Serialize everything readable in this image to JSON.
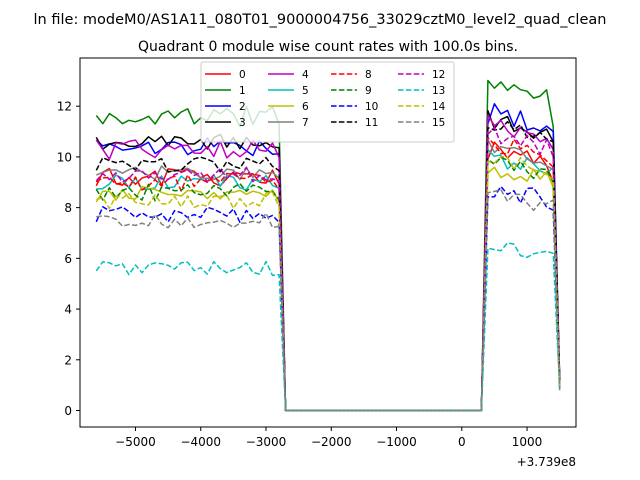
{
  "suptitle": "ln file: modeM0/AS1A11_080T01_9000004756_33029cztM0_level2_quad_clean",
  "chart_data": {
    "type": "line",
    "title": "Quadrant 0 module wise count rates with 100.0s bins.",
    "x_offset_label": "+3.739e8",
    "xlim": [
      -5850,
      1750
    ],
    "ylim": [
      -0.65,
      13.9
    ],
    "xticks": [
      -5000,
      -4000,
      -3000,
      -2000,
      -1000,
      0,
      1000
    ],
    "xtick_labels": [
      "−5000",
      "−4000",
      "−3000",
      "−2000",
      "−1000",
      "0",
      "1000"
    ],
    "yticks": [
      0,
      2,
      4,
      6,
      8,
      10,
      12
    ],
    "ytick_labels": [
      "0",
      "2",
      "4",
      "6",
      "8",
      "10",
      "12"
    ],
    "x_first_segment": [
      -5600,
      -2800
    ],
    "x_gap": [
      -2700,
      300
    ],
    "x_second_segment": [
      400,
      1500
    ],
    "step": 100,
    "legend_ncol": 4,
    "legend_location": "top-center",
    "series": [
      {
        "name": "0",
        "color": "#ff0000",
        "dash": false,
        "level1": 9.2,
        "amp1": 0.35,
        "level2": 10.3,
        "amp2": 0.4,
        "end_drop": 9.0,
        "last": 1.0
      },
      {
        "name": "1",
        "color": "#008000",
        "dash": false,
        "level1": 11.6,
        "amp1": 0.4,
        "level2": 12.9,
        "amp2": 0.3,
        "end_drop": 11.2,
        "last": 1.2
      },
      {
        "name": "2",
        "color": "#0000ff",
        "dash": false,
        "level1": 10.4,
        "amp1": 0.35,
        "level2": 11.8,
        "amp2": 0.5,
        "end_drop": 11.0,
        "last": 1.2
      },
      {
        "name": "3",
        "color": "#000000",
        "dash": false,
        "level1": 10.6,
        "amp1": 0.3,
        "level2": 11.5,
        "amp2": 0.4,
        "end_drop": 10.6,
        "last": 1.0
      },
      {
        "name": "4",
        "color": "#bf00bf",
        "dash": false,
        "level1": 10.3,
        "amp1": 0.4,
        "level2": 11.3,
        "amp2": 0.4,
        "end_drop": 10.3,
        "last": 1.0
      },
      {
        "name": "5",
        "color": "#00bfbf",
        "dash": false,
        "level1": 9.0,
        "amp1": 0.3,
        "level2": 10.0,
        "amp2": 0.35,
        "end_drop": 9.6,
        "last": 1.0
      },
      {
        "name": "6",
        "color": "#bfbf00",
        "dash": false,
        "level1": 8.5,
        "amp1": 0.35,
        "level2": 9.6,
        "amp2": 0.35,
        "end_drop": 8.8,
        "last": 0.9
      },
      {
        "name": "7",
        "color": "#808080",
        "dash": false,
        "level1": 9.4,
        "amp1": 0.3,
        "level2": 10.4,
        "amp2": 0.3,
        "end_drop": 9.5,
        "last": 1.0
      },
      {
        "name": "8",
        "color": "#ff0000",
        "dash": true,
        "level1": 9.0,
        "amp1": 0.35,
        "level2": 10.6,
        "amp2": 0.4,
        "end_drop": 9.6,
        "last": 1.0
      },
      {
        "name": "9",
        "color": "#008000",
        "dash": true,
        "level1": 8.6,
        "amp1": 0.35,
        "level2": 9.8,
        "amp2": 0.35,
        "end_drop": 9.0,
        "last": 0.9
      },
      {
        "name": "10",
        "color": "#0000ff",
        "dash": true,
        "level1": 7.7,
        "amp1": 0.35,
        "level2": 8.8,
        "amp2": 0.4,
        "end_drop": 7.9,
        "last": 0.9
      },
      {
        "name": "11",
        "color": "#000000",
        "dash": true,
        "level1": 9.7,
        "amp1": 0.3,
        "level2": 11.3,
        "amp2": 0.35,
        "end_drop": 10.6,
        "last": 1.1
      },
      {
        "name": "12",
        "color": "#bf00bf",
        "dash": true,
        "level1": 9.3,
        "amp1": 0.3,
        "level2": 10.9,
        "amp2": 0.4,
        "end_drop": 10.0,
        "last": 1.0
      },
      {
        "name": "13",
        "color": "#00bfbf",
        "dash": true,
        "level1": 5.6,
        "amp1": 0.3,
        "level2": 6.6,
        "amp2": 0.3,
        "end_drop": 6.2,
        "last": 0.8
      },
      {
        "name": "14",
        "color": "#bfbf00",
        "dash": true,
        "level1": 8.3,
        "amp1": 0.35,
        "level2": 9.9,
        "amp2": 0.35,
        "end_drop": 9.1,
        "last": 0.9
      },
      {
        "name": "15",
        "color": "#808080",
        "dash": true,
        "level1": 7.5,
        "amp1": 0.3,
        "level2": 8.6,
        "amp2": 0.35,
        "end_drop": 8.3,
        "last": 0.8
      }
    ]
  }
}
